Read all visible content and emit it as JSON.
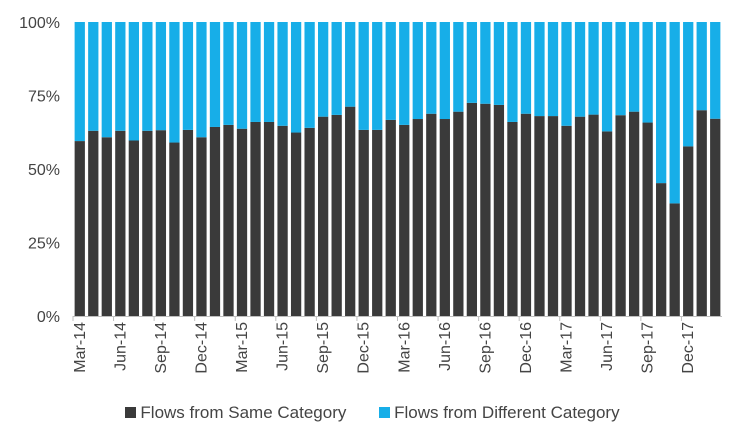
{
  "chart_data": {
    "type": "bar",
    "stacked": true,
    "percent": true,
    "categories": [
      "Mar-14",
      "Apr-14",
      "May-14",
      "Jun-14",
      "Jul-14",
      "Aug-14",
      "Sep-14",
      "Oct-14",
      "Nov-14",
      "Dec-14",
      "Jan-15",
      "Feb-15",
      "Mar-15",
      "Apr-15",
      "May-15",
      "Jun-15",
      "Jul-15",
      "Aug-15",
      "Sep-15",
      "Oct-15",
      "Nov-15",
      "Dec-15",
      "Jan-16",
      "Feb-16",
      "Mar-16",
      "Apr-16",
      "May-16",
      "Jun-16",
      "Jul-16",
      "Aug-16",
      "Sep-16",
      "Oct-16",
      "Nov-16",
      "Dec-16",
      "Jan-17",
      "Feb-17",
      "Mar-17",
      "Apr-17",
      "May-17",
      "Jun-17",
      "Jul-17",
      "Aug-17",
      "Sep-17",
      "Oct-17",
      "Nov-17",
      "Dec-17",
      "Jan-18",
      "Feb-18"
    ],
    "x_tick_labels": [
      "Mar-14",
      "Jun-14",
      "Sep-14",
      "Dec-14",
      "Mar-15",
      "Jun-15",
      "Sep-15",
      "Dec-15",
      "Mar-16",
      "Jun-16",
      "Sep-16",
      "Dec-16",
      "Mar-17",
      "Jun-17",
      "Sep-17",
      "Dec-17"
    ],
    "y_tick_labels": [
      "0%",
      "25%",
      "50%",
      "75%",
      "100%"
    ],
    "ylim": [
      0,
      100
    ],
    "series": [
      {
        "name": "Flows from Same Category",
        "color": "#3a3a3a",
        "values": [
          59.5,
          63,
          60.8,
          63,
          59.7,
          63,
          63.2,
          59,
          63.3,
          60.8,
          64.3,
          65,
          63.7,
          66,
          66,
          64.7,
          62.4,
          64,
          67.8,
          68.4,
          71.2,
          63.3,
          63.3,
          66.7,
          65,
          67,
          68.8,
          67,
          69.5,
          72.5,
          72.2,
          71.8,
          66,
          68.8,
          68,
          68,
          64.7,
          67.8,
          68.5,
          62.8,
          68.3,
          69.5,
          65.8,
          45.2,
          38.3,
          57.7,
          70,
          67.1
        ]
      },
      {
        "name": "Flows from Different Category",
        "color": "#17aee8",
        "values": [
          40.5,
          37,
          39.2,
          37,
          40.3,
          37,
          36.8,
          41,
          36.7,
          39.2,
          35.7,
          35,
          36.3,
          34,
          34,
          35.3,
          37.6,
          36,
          32.2,
          31.6,
          28.8,
          36.7,
          36.7,
          33.3,
          35,
          33,
          31.2,
          33,
          30.5,
          27.5,
          27.8,
          28.2,
          34,
          31.2,
          32,
          32,
          35.3,
          32.2,
          31.5,
          37.2,
          31.7,
          30.5,
          34.2,
          54.8,
          61.7,
          42.3,
          30,
          32.9
        ]
      }
    ],
    "legend": "bottom",
    "grid": false
  }
}
